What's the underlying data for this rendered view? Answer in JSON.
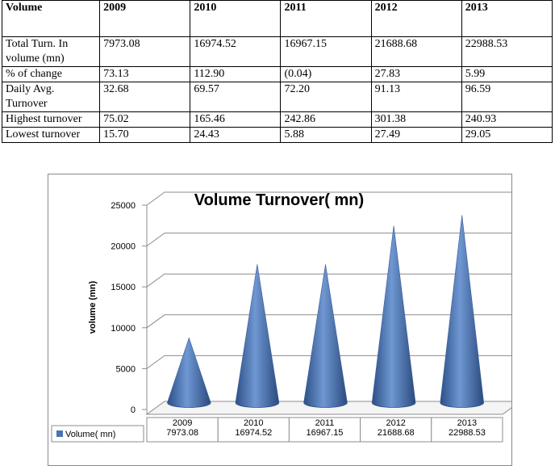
{
  "table": {
    "header": [
      "Volume",
      "2009",
      "2010",
      "2011",
      "2012",
      "2013"
    ],
    "rows": [
      {
        "label": "Total Turn. In volume (mn)",
        "values": [
          "7973.08",
          "16974.52",
          "16967.15",
          "21688.68",
          "22988.53"
        ]
      },
      {
        "label": "% of change",
        "values": [
          "73.13",
          "112.90",
          "(0.04)",
          "27.83",
          "5.99"
        ]
      },
      {
        "label": "Daily Avg. Turnover",
        "values": [
          "32.68",
          "69.57",
          "72.20",
          "91.13",
          "96.59"
        ]
      },
      {
        "label": "Highest turnover",
        "values": [
          "75.02",
          "165.46",
          "242.86",
          "301.38",
          "240.93"
        ]
      },
      {
        "label": "Lowest turnover",
        "values": [
          "15.70",
          "24.43",
          "5.88",
          "27.49",
          "29.05"
        ]
      }
    ]
  },
  "chart_data": {
    "type": "bar",
    "bar_shape": "cone-3d",
    "title": "Volume Turnover( mn)",
    "ylabel": "volume (mn)",
    "xlabel": "",
    "categories": [
      "2009",
      "2010",
      "2011",
      "2012",
      "2013"
    ],
    "series": [
      {
        "name": "Volume( mn)",
        "values": [
          7973.08,
          16974.52,
          16967.15,
          21688.68,
          22988.53
        ],
        "color": "#4a74b4"
      }
    ],
    "value_labels": [
      "7973.08",
      "16974.52",
      "16967.15",
      "21688.68",
      "22988.53"
    ],
    "yticks": [
      "0",
      "5000",
      "10000",
      "15000",
      "20000",
      "25000"
    ],
    "ylim": [
      0,
      25000
    ],
    "grid": true,
    "legend": "data-table-left",
    "data_table": true,
    "colors": {
      "series": "#4a74b4",
      "grid": "#8c8c8c",
      "frame": "#8a8a8a"
    }
  }
}
